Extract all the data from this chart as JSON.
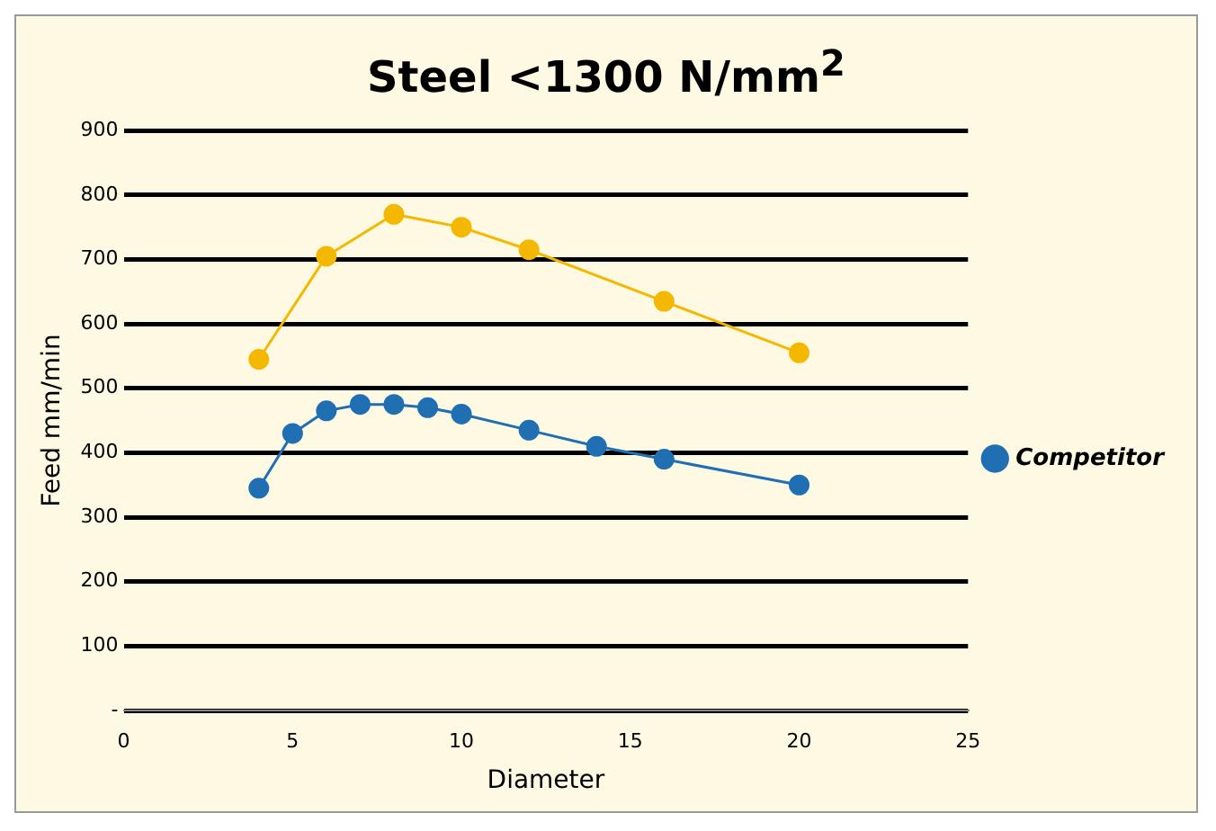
{
  "chart_data": {
    "type": "line",
    "title": "Steel <1300 N/mm$^{2}$",
    "xlabel": "Diameter",
    "ylabel": "Feed mm/min",
    "xlim": [
      0,
      25
    ],
    "xticks": [
      0,
      5,
      10,
      15,
      20,
      25
    ],
    "ylim": [
      0,
      900
    ],
    "yticks": [
      {
        "value": 0,
        "label": "-"
      },
      100,
      200,
      300,
      400,
      500,
      600,
      700,
      800,
      900
    ],
    "grid": "y",
    "legend": "right",
    "marker": "circle",
    "line_style": "solid",
    "series": [
      {
        "color": "#f5b800",
        "x": [
          4,
          6,
          8,
          10,
          12,
          16,
          20
        ],
        "values": [
          545,
          705,
          770,
          750,
          715,
          635,
          555
        ]
      },
      {
        "name": "Competitor",
        "color": "#1f6fb2",
        "x": [
          4,
          5,
          6,
          7,
          8,
          9,
          10,
          12,
          14,
          16,
          20
        ],
        "values": [
          345,
          430,
          465,
          475,
          475,
          470,
          460,
          435,
          410,
          390,
          350
        ]
      }
    ]
  }
}
